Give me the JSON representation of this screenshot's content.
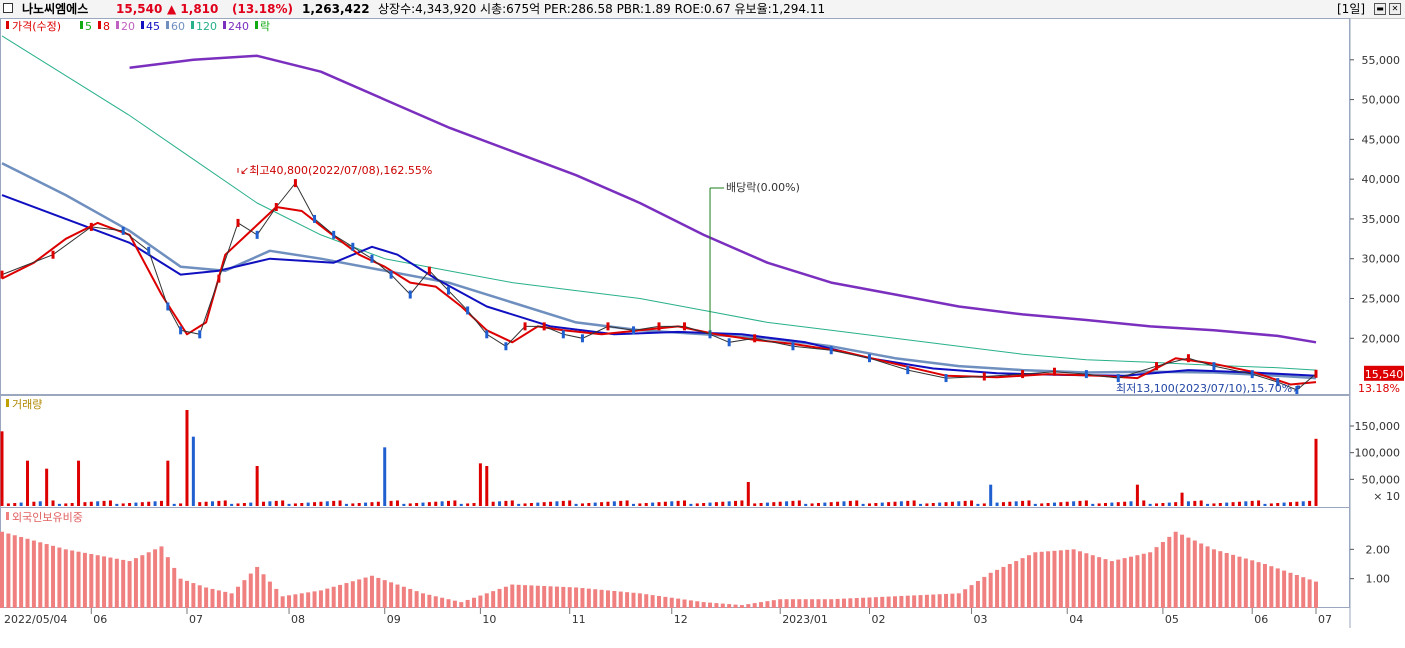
{
  "header": {
    "stock_name": "나노씨엠에스",
    "price": "15,540",
    "change": "▲ 1,810",
    "change_pct": "(13.18%)",
    "volume": "1,263,422",
    "stats": "상장수:4,343,920 시총:675억 PER:286.58 PBR:1.89 ROE:0.67 유보율:1,294.11",
    "period": "[1일]"
  },
  "legend": {
    "price_label": "가격(수정)",
    "ma": [
      {
        "label": "5",
        "color": "#11aa11"
      },
      {
        "label": "8",
        "color": "#dd0000"
      },
      {
        "label": "20",
        "color": "#c060c0"
      },
      {
        "label": "45",
        "color": "#1010c0"
      },
      {
        "label": "60",
        "color": "#6f8fbf"
      },
      {
        "label": "120",
        "color": "#28b08a"
      },
      {
        "label": "240",
        "color": "#7b2fbe"
      }
    ],
    "ex_div_label": "락"
  },
  "annotations": {
    "high": "최고40,800(2022/07/08),162.55%",
    "low": "최저13,100(2023/07/10),15.70%",
    "dividend": "배당락(0.00%)",
    "current_price": "15,540",
    "current_pct": "13.18%"
  },
  "volume_panel": {
    "title": "거래량",
    "unit": "× 10"
  },
  "foreign_panel": {
    "title": "외국인보유비중"
  },
  "x_axis": [
    "2022/05/04",
    "06",
    "07",
    "08",
    "09",
    "10",
    "11",
    "12",
    "2023/01",
    "02",
    "03",
    "04",
    "05",
    "06",
    "07"
  ],
  "price_axis": [
    "55,000",
    "50,000",
    "45,000",
    "40,000",
    "35,000",
    "30,000",
    "25,000",
    "20,000"
  ],
  "volume_axis": [
    "150,000",
    "100,000",
    "50,000"
  ],
  "foreign_axis": [
    "2.00",
    "1.00"
  ],
  "chart_data": {
    "type": "line",
    "title": "",
    "price_ylim": [
      13000,
      60000
    ],
    "price_path": [
      [
        0,
        28000
      ],
      [
        8,
        30500
      ],
      [
        14,
        34000
      ],
      [
        19,
        33500
      ],
      [
        23,
        31000
      ],
      [
        26,
        24000
      ],
      [
        28,
        21000
      ],
      [
        31,
        20500
      ],
      [
        34,
        27500
      ],
      [
        37,
        34500
      ],
      [
        40,
        33000
      ],
      [
        43,
        36500
      ],
      [
        46,
        39500
      ],
      [
        49,
        35000
      ],
      [
        52,
        33000
      ],
      [
        55,
        31500
      ],
      [
        58,
        30000
      ],
      [
        61,
        28000
      ],
      [
        64,
        25500
      ],
      [
        67,
        28500
      ],
      [
        70,
        26000
      ],
      [
        73,
        23500
      ],
      [
        76,
        20500
      ],
      [
        79,
        19000
      ],
      [
        82,
        21500
      ],
      [
        85,
        21500
      ],
      [
        88,
        20500
      ],
      [
        91,
        20000
      ],
      [
        95,
        21500
      ],
      [
        99,
        21000
      ],
      [
        103,
        21500
      ],
      [
        107,
        21500
      ],
      [
        111,
        20500
      ],
      [
        114,
        19500
      ],
      [
        118,
        20000
      ],
      [
        124,
        19000
      ],
      [
        130,
        18500
      ],
      [
        136,
        17500
      ],
      [
        142,
        16000
      ],
      [
        148,
        15000
      ],
      [
        154,
        15200
      ],
      [
        160,
        15500
      ],
      [
        165,
        15800
      ],
      [
        170,
        15500
      ],
      [
        175,
        15000
      ],
      [
        181,
        16500
      ],
      [
        186,
        17500
      ],
      [
        190,
        16500
      ],
      [
        196,
        15500
      ],
      [
        200,
        14500
      ],
      [
        203,
        13500
      ],
      [
        206,
        15540
      ]
    ],
    "ma240": [
      [
        20,
        54000
      ],
      [
        30,
        55000
      ],
      [
        40,
        55500
      ],
      [
        50,
        53500
      ],
      [
        60,
        50000
      ],
      [
        70,
        46500
      ],
      [
        80,
        43500
      ],
      [
        90,
        40500
      ],
      [
        100,
        37000
      ],
      [
        110,
        33000
      ],
      [
        120,
        29500
      ],
      [
        130,
        27000
      ],
      [
        140,
        25500
      ],
      [
        150,
        24000
      ],
      [
        160,
        23000
      ],
      [
        170,
        22300
      ],
      [
        180,
        21500
      ],
      [
        190,
        21000
      ],
      [
        200,
        20300
      ],
      [
        206,
        19500
      ]
    ],
    "ma120": [
      [
        0,
        58000
      ],
      [
        10,
        53000
      ],
      [
        20,
        48000
      ],
      [
        30,
        42500
      ],
      [
        40,
        37000
      ],
      [
        50,
        33000
      ],
      [
        60,
        30000
      ],
      [
        70,
        28500
      ],
      [
        80,
        27000
      ],
      [
        90,
        26000
      ],
      [
        100,
        25000
      ],
      [
        110,
        23500
      ],
      [
        120,
        22000
      ],
      [
        130,
        21000
      ],
      [
        140,
        20000
      ],
      [
        150,
        19000
      ],
      [
        160,
        18000
      ],
      [
        170,
        17300
      ],
      [
        180,
        17000
      ],
      [
        190,
        16600
      ],
      [
        200,
        16300
      ],
      [
        206,
        16000
      ]
    ],
    "ma60": [
      [
        0,
        42000
      ],
      [
        10,
        38000
      ],
      [
        20,
        33500
      ],
      [
        28,
        29000
      ],
      [
        35,
        28500
      ],
      [
        42,
        31000
      ],
      [
        50,
        30000
      ],
      [
        60,
        28500
      ],
      [
        70,
        27000
      ],
      [
        80,
        24500
      ],
      [
        90,
        22000
      ],
      [
        100,
        21000
      ],
      [
        110,
        20500
      ],
      [
        120,
        20000
      ],
      [
        130,
        19000
      ],
      [
        140,
        17500
      ],
      [
        150,
        16500
      ],
      [
        160,
        16000
      ],
      [
        170,
        15700
      ],
      [
        180,
        15800
      ],
      [
        190,
        15700
      ],
      [
        200,
        15300
      ],
      [
        206,
        15000
      ]
    ],
    "ma45": [
      [
        0,
        38000
      ],
      [
        10,
        35000
      ],
      [
        20,
        32000
      ],
      [
        28,
        28000
      ],
      [
        34,
        28500
      ],
      [
        42,
        30000
      ],
      [
        52,
        29500
      ],
      [
        58,
        31500
      ],
      [
        62,
        30500
      ],
      [
        68,
        27500
      ],
      [
        76,
        24000
      ],
      [
        86,
        21500
      ],
      [
        96,
        20500
      ],
      [
        106,
        20800
      ],
      [
        116,
        20500
      ],
      [
        126,
        19500
      ],
      [
        136,
        17500
      ],
      [
        146,
        16200
      ],
      [
        156,
        15600
      ],
      [
        166,
        15400
      ],
      [
        176,
        15300
      ],
      [
        186,
        16000
      ],
      [
        196,
        15700
      ],
      [
        206,
        15300
      ]
    ],
    "ma8": [
      [
        0,
        27500
      ],
      [
        5,
        29500
      ],
      [
        10,
        32500
      ],
      [
        15,
        34500
      ],
      [
        20,
        33000
      ],
      [
        25,
        25500
      ],
      [
        29,
        20500
      ],
      [
        32,
        22000
      ],
      [
        35,
        30500
      ],
      [
        39,
        33500
      ],
      [
        43,
        36500
      ],
      [
        47,
        36000
      ],
      [
        51,
        33500
      ],
      [
        56,
        30500
      ],
      [
        60,
        29000
      ],
      [
        64,
        27000
      ],
      [
        68,
        26500
      ],
      [
        72,
        24000
      ],
      [
        76,
        21000
      ],
      [
        80,
        19500
      ],
      [
        84,
        21500
      ],
      [
        88,
        21000
      ],
      [
        94,
        20500
      ],
      [
        100,
        21000
      ],
      [
        106,
        21500
      ],
      [
        112,
        20500
      ],
      [
        118,
        19800
      ],
      [
        124,
        19300
      ],
      [
        132,
        18300
      ],
      [
        140,
        16800
      ],
      [
        148,
        15300
      ],
      [
        156,
        15100
      ],
      [
        164,
        15500
      ],
      [
        172,
        15300
      ],
      [
        178,
        15000
      ],
      [
        184,
        17500
      ],
      [
        190,
        16800
      ],
      [
        196,
        15800
      ],
      [
        202,
        14200
      ],
      [
        206,
        14500
      ]
    ],
    "volume_ylim": [
      0,
      180000
    ],
    "volume_bars": [
      {
        "i": 0,
        "v": 140000,
        "up": true
      },
      {
        "i": 4,
        "v": 85000,
        "up": true
      },
      {
        "i": 7,
        "v": 70000,
        "up": true
      },
      {
        "i": 12,
        "v": 85000,
        "up": true
      },
      {
        "i": 26,
        "v": 85000,
        "up": true
      },
      {
        "i": 29,
        "v": 180000,
        "up": true
      },
      {
        "i": 30,
        "v": 130000,
        "up": false
      },
      {
        "i": 40,
        "v": 75000,
        "up": true
      },
      {
        "i": 60,
        "v": 110000,
        "up": false
      },
      {
        "i": 75,
        "v": 80000,
        "up": true
      },
      {
        "i": 76,
        "v": 75000,
        "up": true
      },
      {
        "i": 117,
        "v": 45000,
        "up": true
      },
      {
        "i": 155,
        "v": 40000,
        "up": false
      },
      {
        "i": 178,
        "v": 40000,
        "up": true
      },
      {
        "i": 185,
        "v": 25000,
        "up": true
      },
      {
        "i": 206,
        "v": 126000,
        "up": true
      }
    ],
    "foreign_ylim": [
      0,
      3.0
    ],
    "foreign_ratio": [
      [
        0,
        2.6
      ],
      [
        10,
        2.0
      ],
      [
        20,
        1.6
      ],
      [
        25,
        2.1
      ],
      [
        28,
        1.0
      ],
      [
        32,
        0.7
      ],
      [
        36,
        0.5
      ],
      [
        40,
        1.4
      ],
      [
        44,
        0.4
      ],
      [
        50,
        0.6
      ],
      [
        58,
        1.1
      ],
      [
        66,
        0.5
      ],
      [
        72,
        0.2
      ],
      [
        80,
        0.8
      ],
      [
        90,
        0.7
      ],
      [
        100,
        0.5
      ],
      [
        110,
        0.2
      ],
      [
        116,
        0.1
      ],
      [
        122,
        0.3
      ],
      [
        130,
        0.3
      ],
      [
        140,
        0.4
      ],
      [
        150,
        0.5
      ],
      [
        155,
        1.2
      ],
      [
        162,
        1.9
      ],
      [
        168,
        2.0
      ],
      [
        174,
        1.6
      ],
      [
        180,
        1.9
      ],
      [
        184,
        2.6
      ],
      [
        190,
        2.0
      ],
      [
        198,
        1.5
      ],
      [
        206,
        0.9
      ]
    ]
  }
}
